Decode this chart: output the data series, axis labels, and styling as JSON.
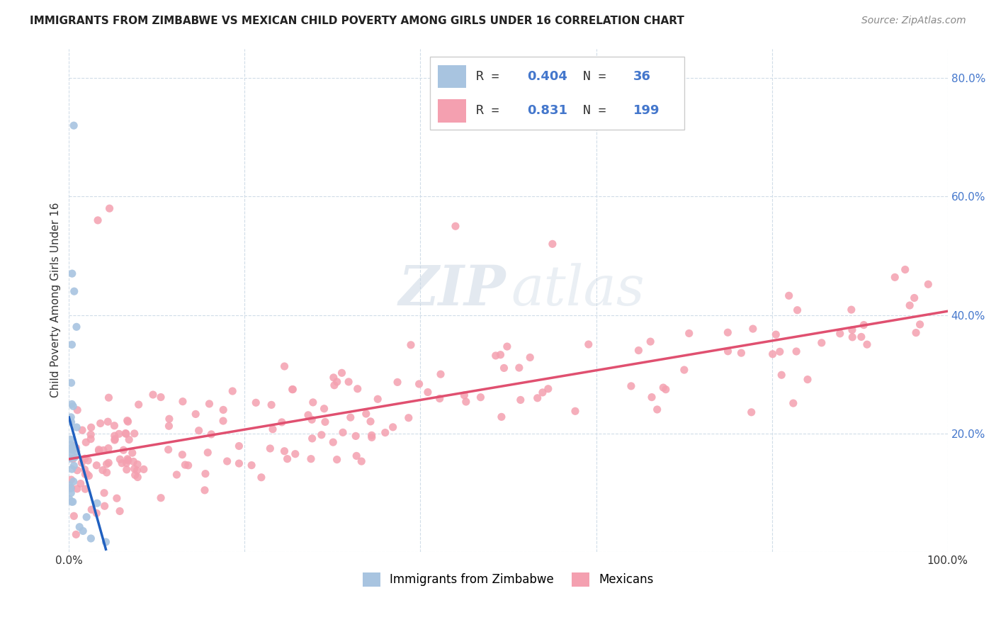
{
  "title": "IMMIGRANTS FROM ZIMBABWE VS MEXICAN CHILD POVERTY AMONG GIRLS UNDER 16 CORRELATION CHART",
  "source": "Source: ZipAtlas.com",
  "ylabel": "Child Poverty Among Girls Under 16",
  "xlim": [
    0,
    1.0
  ],
  "ylim": [
    0,
    0.85
  ],
  "color_zimbabwe": "#a8c4e0",
  "color_mexico": "#f4a0b0",
  "color_line_zimbabwe": "#2060c0",
  "color_line_mexico": "#e05070",
  "color_dashed": "#b8ccd8",
  "background_color": "#ffffff",
  "grid_color": "#d0dce8",
  "r1": "0.404",
  "n1": "36",
  "r2": "0.831",
  "n2": "199",
  "label_zimbabwe": "Immigrants from Zimbabwe",
  "label_mexico": "Mexicans",
  "text_color_label": "#333333",
  "text_color_value": "#4477cc",
  "title_fontsize": 11,
  "source_fontsize": 10,
  "tick_fontsize": 11,
  "legend_fontsize": 13,
  "ylabel_fontsize": 11
}
